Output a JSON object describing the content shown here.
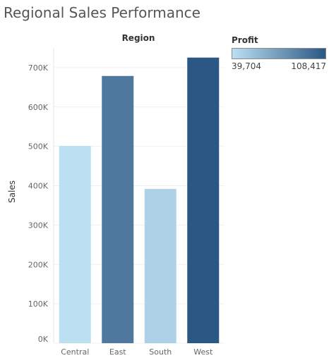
{
  "title": "Regional Sales Performance",
  "chart_data": {
    "type": "bar",
    "title": "Regional Sales Performance",
    "header": "Region",
    "xlabel": "",
    "ylabel": "Sales",
    "categories": [
      "Central",
      "East",
      "South",
      "West"
    ],
    "values": [
      501240,
      678781,
      391722,
      725458
    ],
    "profit": [
      39706,
      91523,
      46749,
      108418
    ],
    "ylim": [
      0,
      750000
    ],
    "yticks": [
      0,
      100000,
      200000,
      300000,
      400000,
      500000,
      600000,
      700000
    ],
    "ytick_labels": [
      "0K",
      "100K",
      "200K",
      "300K",
      "400K",
      "500K",
      "600K",
      "700K"
    ],
    "grid": true,
    "color_legend": {
      "title": "Profit",
      "min_label": "39,704",
      "max_label": "108,417",
      "min": 39704,
      "max": 108417,
      "color_low": "#bcdff2",
      "color_high": "#2a5783"
    }
  }
}
